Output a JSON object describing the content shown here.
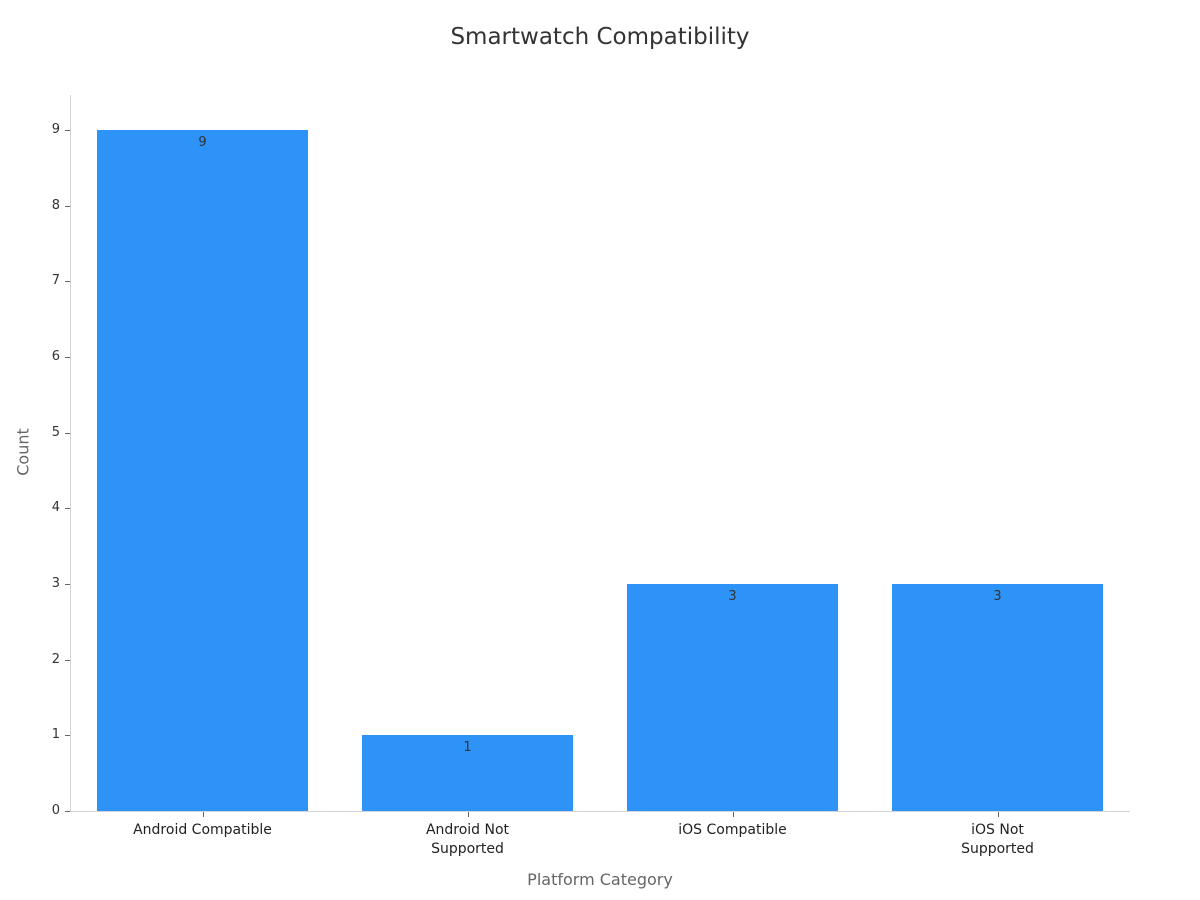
{
  "chart_data": {
    "type": "bar",
    "title": "Smartwatch Compatibility",
    "xlabel": "Platform Category",
    "ylabel": "Count",
    "categories": [
      "Android Compatible",
      "Android Not Supported",
      "iOS Compatible",
      "iOS Not Supported"
    ],
    "category_display": [
      [
        "Android Compatible"
      ],
      [
        "Android Not",
        "Supported"
      ],
      [
        "iOS Compatible"
      ],
      [
        "iOS Not",
        "Supported"
      ]
    ],
    "values": [
      9,
      1,
      3,
      3
    ],
    "data_labels": [
      "9",
      "1",
      "3",
      "3"
    ],
    "yticks": [
      0,
      1,
      2,
      3,
      4,
      5,
      6,
      7,
      8,
      9
    ],
    "ylim": [
      0,
      9.45
    ],
    "bar_color": "#2e93f6",
    "grid": false,
    "legend": null
  }
}
